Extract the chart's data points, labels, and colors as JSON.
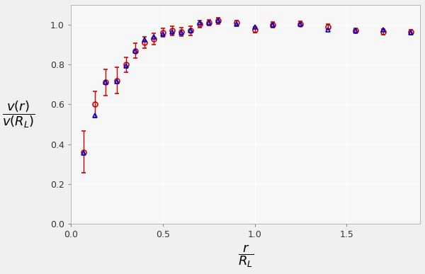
{
  "xlabel": "$\\dfrac{r}{R_L}$",
  "ylabel": "$\\dfrac{v(r)}{v(R_L)}$",
  "xlim": [
    0.0,
    1.9
  ],
  "ylim": [
    0.0,
    1.1
  ],
  "xticks": [
    0.0,
    0.5,
    1.0,
    1.5
  ],
  "yticks": [
    0.0,
    0.2,
    0.4,
    0.6,
    0.8,
    1.0
  ],
  "background_color": "#f0f0f0",
  "plot_bg_color": "#f7f7f7",
  "grid_color": "#ffffff",
  "data_red_x": [
    0.07,
    0.13,
    0.19,
    0.25,
    0.3,
    0.35,
    0.4,
    0.45,
    0.5,
    0.55,
    0.6,
    0.65,
    0.7,
    0.75,
    0.8,
    0.9,
    1.0,
    1.1,
    1.25,
    1.4,
    1.55,
    1.7,
    1.85
  ],
  "data_red_y": [
    0.36,
    0.6,
    0.71,
    0.72,
    0.8,
    0.87,
    0.91,
    0.93,
    0.96,
    0.97,
    0.965,
    0.97,
    1.005,
    1.01,
    1.02,
    1.01,
    0.975,
    1.0,
    1.005,
    0.99,
    0.97,
    0.965,
    0.963
  ],
  "data_red_yerr": [
    0.105,
    0.065,
    0.065,
    0.065,
    0.038,
    0.038,
    0.028,
    0.028,
    0.022,
    0.022,
    0.022,
    0.022,
    0.018,
    0.015,
    0.015,
    0.013,
    0.013,
    0.013,
    0.013,
    0.013,
    0.013,
    0.013,
    0.013
  ],
  "data_blue_x": [
    0.07,
    0.13,
    0.19,
    0.25,
    0.3,
    0.35,
    0.4,
    0.45,
    0.5,
    0.55,
    0.6,
    0.65,
    0.7,
    0.75,
    0.8,
    0.9,
    1.0,
    1.1,
    1.25,
    1.4,
    1.55,
    1.7,
    1.85
  ],
  "data_blue_y": [
    0.355,
    0.545,
    0.71,
    0.715,
    0.795,
    0.87,
    0.925,
    0.94,
    0.955,
    0.965,
    0.96,
    0.97,
    1.01,
    1.01,
    1.02,
    1.005,
    0.99,
    1.0,
    1.005,
    0.975,
    0.97,
    0.975,
    0.96
  ],
  "red_color": "#cc0000",
  "blue_color": "#0000cc",
  "marker_size": 5,
  "capsize": 2.5,
  "elinewidth": 1.0,
  "markeredgewidth": 1.2
}
